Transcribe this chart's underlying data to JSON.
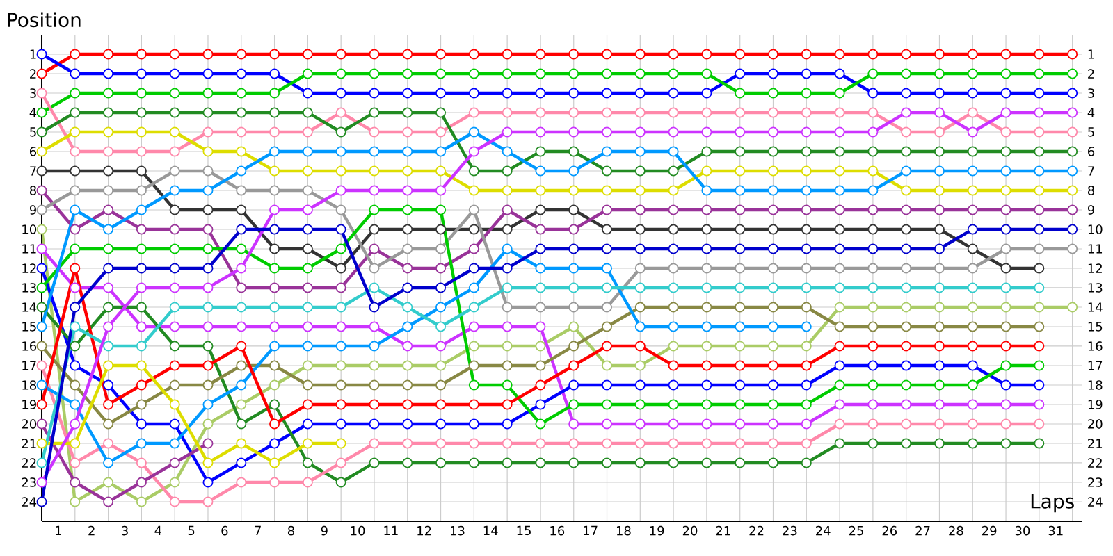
{
  "chart_data": {
    "type": "line",
    "xlabel": "Laps",
    "ylabel": "Position",
    "marker": "circle",
    "grid": true,
    "line_style": "solid",
    "xlim": [
      0,
      31.3
    ],
    "ylim": [
      25,
      0
    ],
    "y2lim": [
      25,
      0
    ],
    "xticks": [
      {
        "value": 0.5,
        "label": "1"
      },
      {
        "value": 1,
        "label": null
      },
      {
        "value": 1.5,
        "label": "2"
      },
      {
        "value": 2,
        "label": null
      },
      {
        "value": 2.5,
        "label": "3"
      },
      {
        "value": 3,
        "label": null
      },
      {
        "value": 3.5,
        "label": "4"
      },
      {
        "value": 4,
        "label": null
      },
      {
        "value": 4.5,
        "label": "5"
      },
      {
        "value": 5,
        "label": null
      },
      {
        "value": 5.5,
        "label": "6"
      },
      {
        "value": 6,
        "label": null
      },
      {
        "value": 6.5,
        "label": "7"
      },
      {
        "value": 7,
        "label": null
      },
      {
        "value": 7.5,
        "label": "8"
      },
      {
        "value": 8,
        "label": null
      },
      {
        "value": 8.5,
        "label": "9"
      },
      {
        "value": 9,
        "label": null
      },
      {
        "value": 9.5,
        "label": "10"
      },
      {
        "value": 10,
        "label": null
      },
      {
        "value": 10.5,
        "label": "11"
      },
      {
        "value": 11,
        "label": null
      },
      {
        "value": 11.5,
        "label": "12"
      },
      {
        "value": 12,
        "label": null
      },
      {
        "value": 12.5,
        "label": "13"
      },
      {
        "value": 13,
        "label": null
      },
      {
        "value": 13.5,
        "label": "14"
      },
      {
        "value": 14,
        "label": null
      },
      {
        "value": 14.5,
        "label": "15"
      },
      {
        "value": 15,
        "label": null
      },
      {
        "value": 15.5,
        "label": "16"
      },
      {
        "value": 16,
        "label": null
      },
      {
        "value": 16.5,
        "label": "17"
      },
      {
        "value": 17,
        "label": null
      },
      {
        "value": 17.5,
        "label": "18"
      },
      {
        "value": 18,
        "label": null
      },
      {
        "value": 18.5,
        "label": "19"
      },
      {
        "value": 19,
        "label": null
      },
      {
        "value": 19.5,
        "label": "20"
      },
      {
        "value": 20,
        "label": null
      },
      {
        "value": 20.5,
        "label": "21"
      },
      {
        "value": 21,
        "label": null
      },
      {
        "value": 21.5,
        "label": "22"
      },
      {
        "value": 22,
        "label": null
      },
      {
        "value": 22.5,
        "label": "23"
      },
      {
        "value": 23,
        "label": null
      },
      {
        "value": 23.5,
        "label": "24"
      },
      {
        "value": 24,
        "label": null
      },
      {
        "value": 24.5,
        "label": "25"
      },
      {
        "value": 25,
        "label": null
      },
      {
        "value": 25.5,
        "label": "26"
      },
      {
        "value": 26,
        "label": null
      },
      {
        "value": 26.5,
        "label": "27"
      },
      {
        "value": 27,
        "label": null
      },
      {
        "value": 27.5,
        "label": "28"
      },
      {
        "value": 28,
        "label": null
      },
      {
        "value": 28.5,
        "label": "29"
      },
      {
        "value": 29,
        "label": null
      },
      {
        "value": 29.5,
        "label": "30"
      },
      {
        "value": 30,
        "label": null
      },
      {
        "value": 30.5,
        "label": "31"
      },
      {
        "value": 31,
        "label": null
      }
    ],
    "yticks": [
      1,
      2,
      3,
      4,
      5,
      6,
      7,
      8,
      9,
      10,
      11,
      12,
      13,
      14,
      15,
      16,
      17,
      18,
      19,
      20,
      21,
      22,
      23,
      24
    ],
    "y2ticks": [
      1,
      2,
      3,
      4,
      5,
      6,
      7,
      8,
      9,
      10,
      11,
      12,
      13,
      14,
      15,
      16,
      17,
      18,
      19,
      20,
      21,
      22,
      23,
      24
    ],
    "x": [
      0,
      1,
      2,
      3,
      4,
      5,
      6,
      7,
      8,
      9,
      10,
      11,
      12,
      13,
      14,
      15,
      16,
      17,
      18,
      19,
      20,
      21,
      22,
      23,
      24,
      25,
      26,
      27,
      28,
      29,
      30,
      31
    ],
    "series": [
      {
        "color": "#ff0000",
        "values": [
          2,
          1,
          1,
          1,
          1,
          1,
          1,
          1,
          1,
          1,
          1,
          1,
          1,
          1,
          1,
          1,
          1,
          1,
          1,
          1,
          1,
          1,
          1,
          1,
          1,
          1,
          1,
          1,
          1,
          1,
          1,
          1
        ]
      },
      {
        "color": "#0000ff",
        "values": [
          1,
          2,
          2,
          2,
          2,
          2,
          2,
          2,
          3,
          3,
          3,
          3,
          3,
          3,
          3,
          3,
          3,
          3,
          3,
          3,
          3,
          2,
          2,
          2,
          2,
          3,
          3,
          3,
          3,
          3,
          3,
          3
        ]
      },
      {
        "color": "#00cc00",
        "values": [
          4,
          3,
          3,
          3,
          3,
          3,
          3,
          3,
          2,
          2,
          2,
          2,
          2,
          2,
          2,
          2,
          2,
          2,
          2,
          2,
          2,
          3,
          3,
          3,
          3,
          2,
          2,
          2,
          2,
          2,
          2,
          2
        ]
      },
      {
        "color": "#ff88aa",
        "values": [
          3,
          6,
          6,
          6,
          6,
          5,
          5,
          5,
          5,
          4,
          5,
          5,
          5,
          4,
          4,
          4,
          4,
          4,
          4,
          4,
          4,
          4,
          4,
          4,
          4,
          4,
          5,
          5,
          4,
          5,
          5,
          5
        ]
      },
      {
        "color": "#228b22",
        "values": [
          5,
          4,
          4,
          4,
          4,
          4,
          4,
          4,
          4,
          5,
          4,
          4,
          4,
          7,
          7,
          6,
          6,
          7,
          7,
          7,
          6,
          6,
          6,
          6,
          6,
          6,
          6,
          6,
          6,
          6,
          6,
          6
        ]
      },
      {
        "color": "#dddd00",
        "values": [
          6,
          5,
          5,
          5,
          5,
          6,
          6,
          7,
          7,
          7,
          7,
          7,
          7,
          8,
          8,
          8,
          8,
          8,
          8,
          8,
          7,
          7,
          7,
          7,
          7,
          7,
          8,
          8,
          8,
          8,
          8,
          8
        ]
      },
      {
        "color": "#333333",
        "values": [
          7,
          7,
          7,
          7,
          9,
          9,
          9,
          11,
          11,
          12,
          10,
          10,
          10,
          10,
          10,
          9,
          9,
          10,
          10,
          10,
          10,
          10,
          10,
          10,
          10,
          10,
          10,
          10,
          11,
          12,
          12,
          null
        ]
      },
      {
        "color": "#993399",
        "values": [
          8,
          10,
          9,
          10,
          10,
          10,
          13,
          13,
          13,
          13,
          11,
          12,
          12,
          11,
          9,
          10,
          10,
          9,
          9,
          9,
          9,
          9,
          9,
          9,
          9,
          9,
          9,
          9,
          9,
          9,
          9,
          9
        ]
      },
      {
        "color": "#999999",
        "values": [
          9,
          8,
          8,
          8,
          7,
          7,
          8,
          8,
          8,
          9,
          12,
          11,
          11,
          9,
          14,
          14,
          14,
          14,
          12,
          12,
          12,
          12,
          12,
          12,
          12,
          12,
          12,
          12,
          12,
          11,
          11,
          11
        ]
      },
      {
        "color": "#aacc66",
        "values": [
          10,
          24,
          23,
          24,
          23,
          20,
          19,
          18,
          17,
          17,
          17,
          17,
          17,
          16,
          16,
          16,
          15,
          17,
          17,
          16,
          16,
          16,
          16,
          16,
          14,
          14,
          14,
          14,
          14,
          14,
          14,
          14
        ]
      },
      {
        "color": "#cc33ff",
        "values": [
          11,
          13,
          13,
          15,
          15,
          15,
          15,
          15,
          15,
          15,
          15,
          16,
          16,
          15,
          15,
          15,
          20,
          20,
          20,
          20,
          20,
          20,
          20,
          20,
          19,
          19,
          19,
          19,
          19,
          19,
          19,
          null
        ]
      },
      {
        "color": "#0000ff",
        "values": [
          12,
          17,
          18,
          20,
          20,
          23,
          22,
          21,
          20,
          20,
          20,
          20,
          20,
          20,
          20,
          19,
          18,
          18,
          18,
          18,
          18,
          18,
          18,
          18,
          17,
          17,
          17,
          17,
          17,
          18,
          18,
          null
        ]
      },
      {
        "color": "#00cc00",
        "values": [
          13,
          11,
          11,
          11,
          11,
          11,
          11,
          12,
          12,
          11,
          9,
          9,
          9,
          18,
          18,
          20,
          19,
          19,
          19,
          19,
          19,
          19,
          19,
          19,
          18,
          18,
          18,
          18,
          18,
          17,
          17,
          null
        ]
      },
      {
        "color": "#228b22",
        "values": [
          14,
          16,
          14,
          14,
          16,
          16,
          20,
          19,
          22,
          23,
          22,
          22,
          22,
          22,
          22,
          22,
          22,
          22,
          22,
          22,
          22,
          22,
          22,
          22,
          21,
          21,
          21,
          21,
          21,
          21,
          21,
          null
        ]
      },
      {
        "color": "#0099ff",
        "values": [
          15,
          9,
          10,
          9,
          8,
          8,
          7,
          6,
          6,
          6,
          6,
          6,
          6,
          5,
          6,
          7,
          7,
          6,
          6,
          6,
          8,
          8,
          8,
          8,
          8,
          8,
          7,
          7,
          7,
          7,
          7,
          7
        ]
      },
      {
        "color": "#888844",
        "values": [
          16,
          18,
          20,
          19,
          18,
          18,
          17,
          17,
          18,
          18,
          18,
          18,
          18,
          17,
          17,
          17,
          16,
          15,
          14,
          14,
          14,
          14,
          14,
          14,
          15,
          15,
          15,
          15,
          15,
          15,
          15,
          null
        ]
      },
      {
        "color": "#ff88aa",
        "values": [
          17,
          22,
          21,
          22,
          24,
          24,
          23,
          23,
          23,
          22,
          21,
          21,
          21,
          21,
          21,
          21,
          21,
          21,
          21,
          21,
          21,
          21,
          21,
          21,
          20,
          20,
          20,
          20,
          20,
          20,
          20,
          null
        ]
      },
      {
        "color": "#0099ff",
        "values": [
          18,
          19,
          22,
          21,
          21,
          19,
          18,
          16,
          16,
          16,
          16,
          15,
          14,
          13,
          11,
          12,
          12,
          12,
          15,
          15,
          15,
          15,
          15,
          15,
          null,
          null,
          null,
          null,
          null,
          null,
          null,
          null
        ]
      },
      {
        "color": "#ff0000",
        "values": [
          19,
          12,
          19,
          18,
          17,
          17,
          16,
          20,
          19,
          19,
          19,
          19,
          19,
          19,
          19,
          18,
          17,
          16,
          16,
          17,
          17,
          17,
          17,
          17,
          16,
          16,
          16,
          16,
          16,
          16,
          16,
          null
        ]
      },
      {
        "color": "#993399",
        "values": [
          20,
          23,
          24,
          23,
          22,
          21,
          null,
          null,
          null,
          null,
          null,
          null,
          null,
          null,
          null,
          null,
          null,
          null,
          null,
          null,
          null,
          null,
          null,
          null,
          null,
          null,
          null,
          null,
          null,
          null,
          null,
          null
        ]
      },
      {
        "color": "#dddd00",
        "values": [
          21,
          21,
          17,
          17,
          19,
          22,
          21,
          22,
          21,
          21,
          null,
          null,
          null,
          null,
          null,
          null,
          null,
          null,
          null,
          null,
          null,
          null,
          null,
          null,
          null,
          null,
          null,
          null,
          null,
          null,
          null,
          null
        ]
      },
      {
        "color": "#33cccc",
        "values": [
          22,
          15,
          16,
          16,
          14,
          14,
          14,
          14,
          14,
          14,
          13,
          14,
          15,
          14,
          13,
          13,
          13,
          13,
          13,
          13,
          13,
          13,
          13,
          13,
          13,
          13,
          13,
          13,
          13,
          13,
          13,
          null
        ]
      },
      {
        "color": "#cc33ff",
        "values": [
          23,
          20,
          15,
          13,
          13,
          13,
          12,
          9,
          9,
          8,
          8,
          8,
          8,
          6,
          5,
          5,
          5,
          5,
          5,
          5,
          5,
          5,
          5,
          5,
          5,
          5,
          4,
          4,
          5,
          4,
          4,
          4
        ]
      },
      {
        "color": "#0000cc",
        "values": [
          24,
          14,
          12,
          12,
          12,
          12,
          10,
          10,
          10,
          10,
          14,
          13,
          13,
          12,
          12,
          11,
          11,
          11,
          11,
          11,
          11,
          11,
          11,
          11,
          11,
          11,
          11,
          11,
          10,
          10,
          10,
          10
        ]
      }
    ]
  }
}
